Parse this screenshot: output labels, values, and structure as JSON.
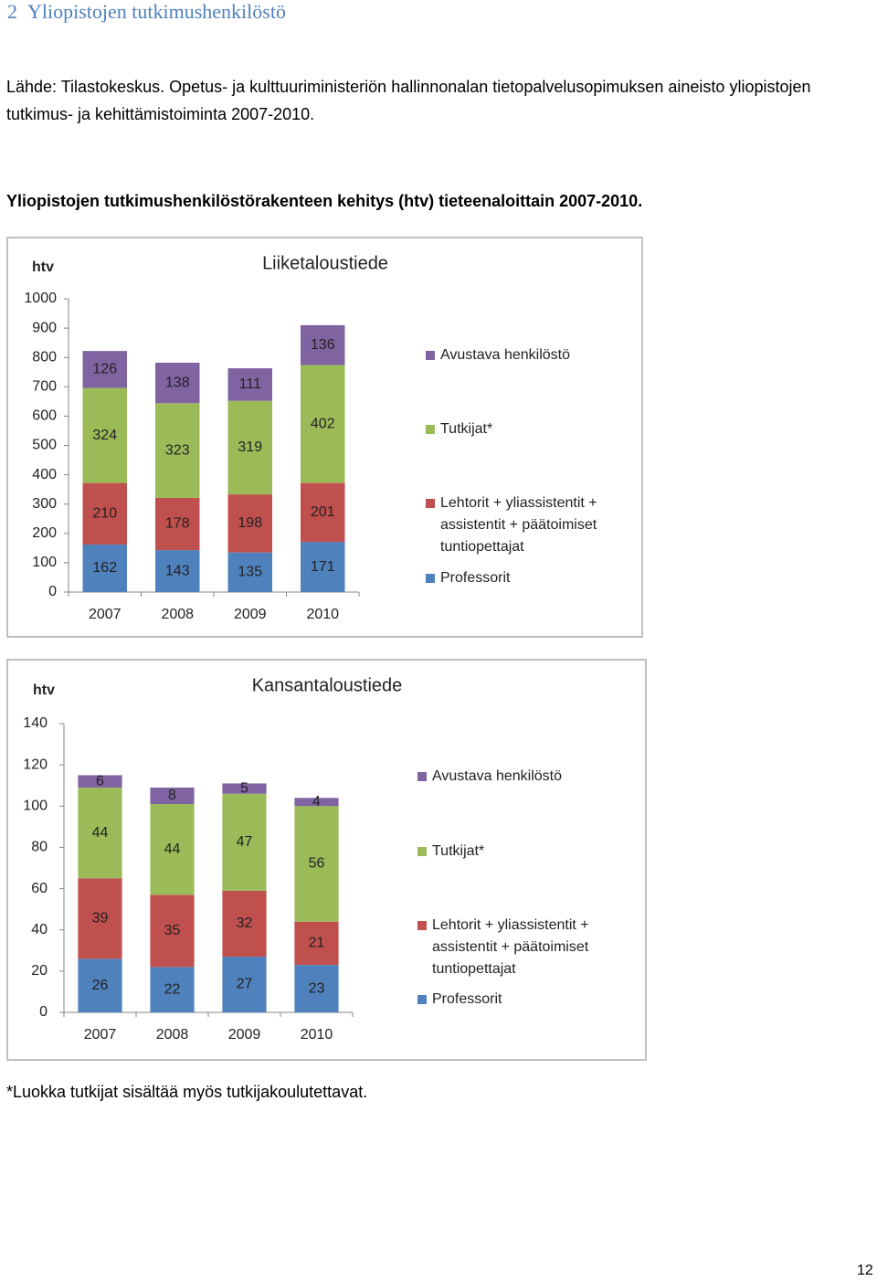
{
  "heading": {
    "number": "2",
    "title": "Yliopistojen tutkimushenkilöstö"
  },
  "source": "Lähde: Tilastokeskus. Opetus- ja kulttuuriministeriön hallinnonalan tietopalvelusopimuksen aineisto yliopistojen tutkimus- ja kehittämistoiminta 2007-2010.",
  "figure_title": "Yliopistojen tutkimushenkilöstörakenteen kehitys (htv) tieteenaloittain 2007-2010.",
  "chart_data": [
    {
      "type": "bar",
      "stacked": true,
      "title": "Liiketaloustiede",
      "y_label": "htv",
      "categories": [
        "2007",
        "2008",
        "2009",
        "2010"
      ],
      "series": [
        {
          "name": "Professorit",
          "color": "#4f81bd",
          "values": [
            162,
            143,
            135,
            171
          ]
        },
        {
          "name": "Lehtorit + yliassistentit + assistentit + päätoimiset tuntiopettajat",
          "color": "#c0504d",
          "values": [
            210,
            178,
            198,
            201
          ]
        },
        {
          "name": "Tutkijat*",
          "color": "#9bbb59",
          "values": [
            324,
            323,
            319,
            402
          ]
        },
        {
          "name": "Avustava henkilöstö",
          "color": "#8064a2",
          "values": [
            126,
            138,
            111,
            136
          ]
        }
      ],
      "ylim": [
        0,
        1000
      ],
      "yticks": [
        0,
        100,
        200,
        300,
        400,
        500,
        600,
        700,
        800,
        900,
        1000
      ],
      "grid": false,
      "legend": "right"
    },
    {
      "type": "bar",
      "stacked": true,
      "title": "Kansantaloustiede",
      "y_label": "htv",
      "categories": [
        "2007",
        "2008",
        "2009",
        "2010"
      ],
      "series": [
        {
          "name": "Professorit",
          "color": "#4f81bd",
          "values": [
            26,
            22,
            27,
            23
          ]
        },
        {
          "name": "Lehtorit + yliassistentit + assistentit + päätoimiset tuntiopettajat",
          "color": "#c0504d",
          "values": [
            39,
            35,
            32,
            21
          ]
        },
        {
          "name": "Tutkijat*",
          "color": "#9bbb59",
          "values": [
            44,
            44,
            47,
            56
          ]
        },
        {
          "name": "Avustava henkilöstö",
          "color": "#8064a2",
          "values": [
            6,
            8,
            5,
            4
          ]
        }
      ],
      "ylim": [
        0,
        140
      ],
      "yticks": [
        0,
        20,
        40,
        60,
        80,
        100,
        120,
        140
      ],
      "grid": false,
      "legend": "right"
    }
  ],
  "footnote": "*Luokka tutkijat sisältää myös tutkijakoulutettavat.",
  "page_number": 12
}
